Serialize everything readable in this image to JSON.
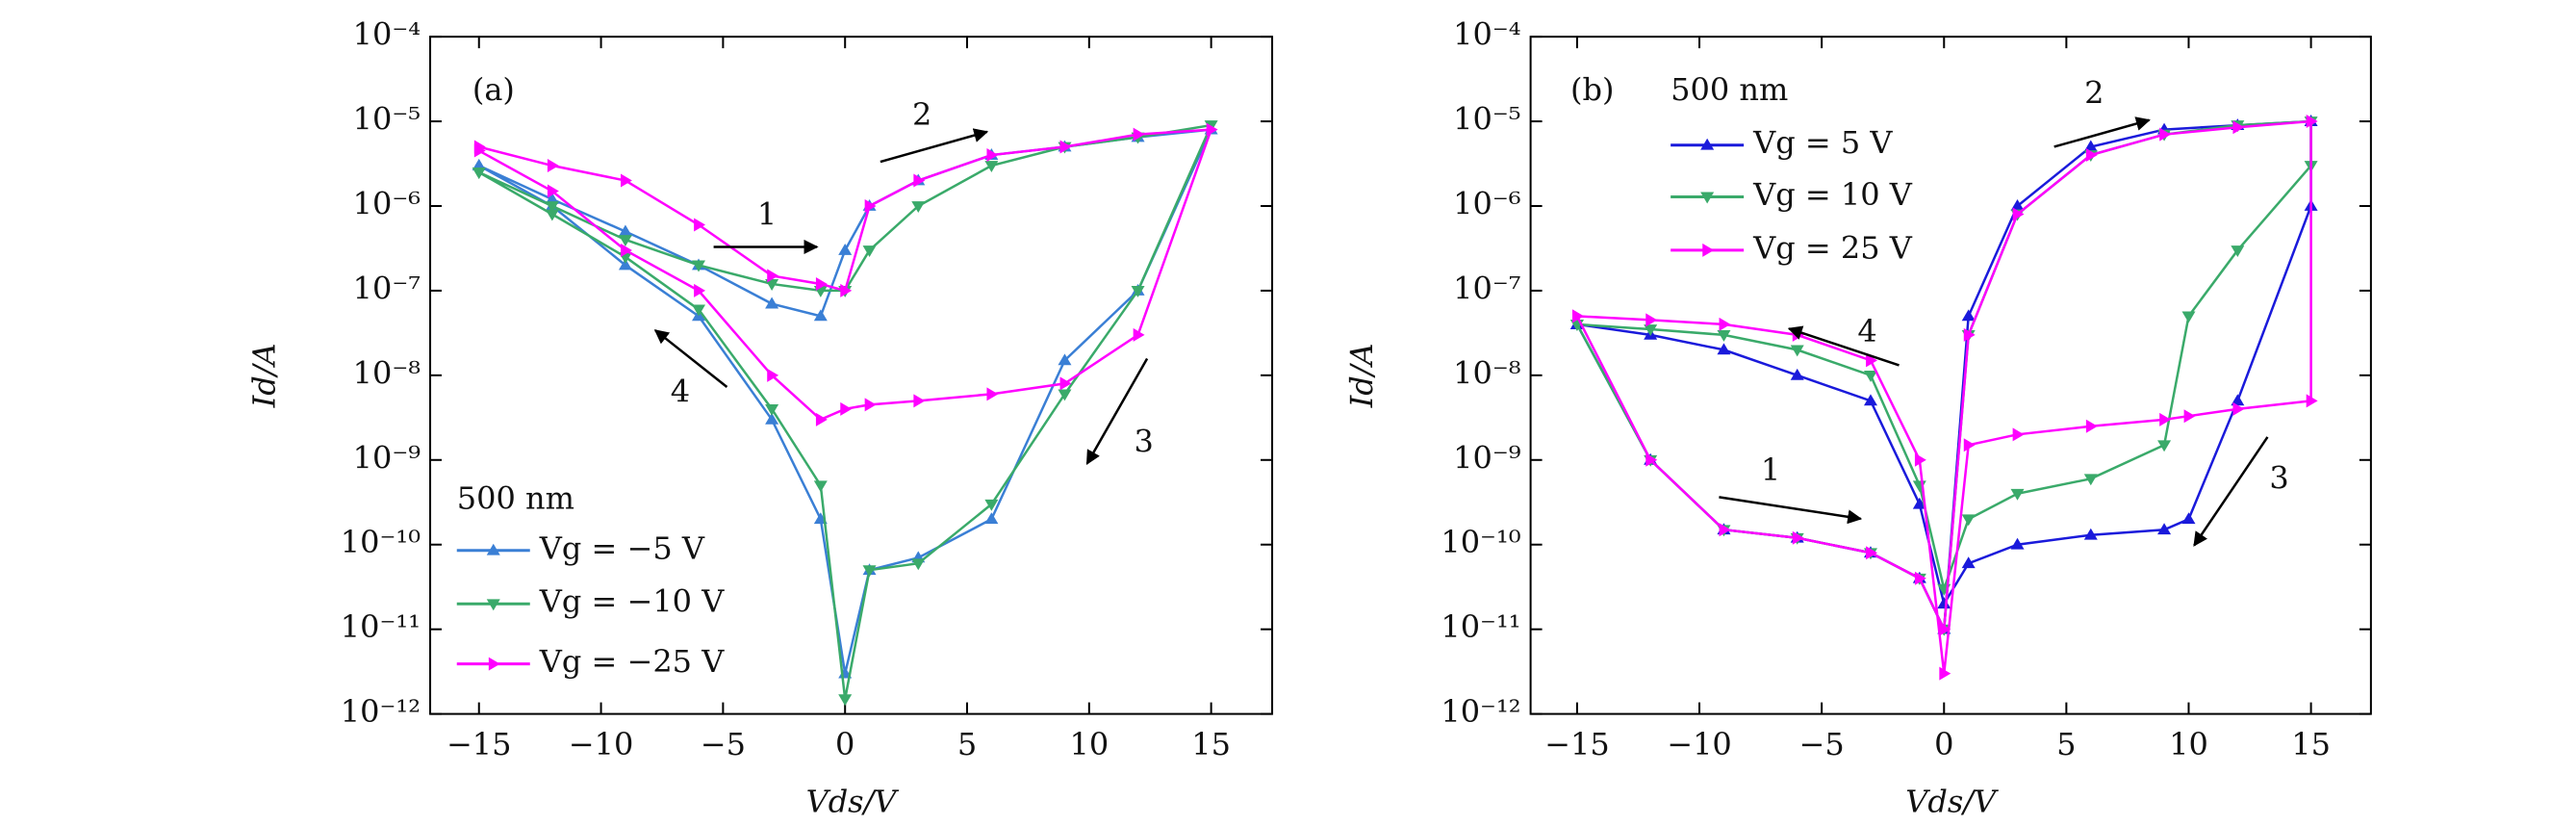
{
  "chart_data": [
    {
      "type": "line",
      "panel_label": "(a)",
      "legend_title": "500 nm",
      "legend": "lower left",
      "xlabel": "Vds/V",
      "ylabel": "Id/A",
      "log_y": true,
      "annotations": [
        "1",
        "2",
        "3",
        "4"
      ],
      "xlim": [
        -17,
        17.5
      ],
      "xticks": [
        {
          "value": -15,
          "label": "−15"
        },
        {
          "value": -10,
          "label": "−10"
        },
        {
          "value": -5,
          "label": "−5"
        },
        0,
        5,
        10,
        15
      ],
      "ylim": [
        1e-12,
        0.0001
      ],
      "yticks": [
        {
          "value": 1e-12,
          "label": "10⁻¹²"
        },
        {
          "value": 1e-11,
          "label": "10⁻¹¹"
        },
        {
          "value": 1e-10,
          "label": "10⁻¹⁰"
        },
        {
          "value": 1e-09,
          "label": "10⁻⁹"
        },
        {
          "value": 1e-08,
          "label": "10⁻⁸"
        },
        {
          "value": 1e-07,
          "label": "10⁻⁷"
        },
        {
          "value": 1e-06,
          "label": "10⁻⁶"
        },
        {
          "value": 1e-05,
          "label": "10⁻⁵"
        },
        {
          "value": 0.0001,
          "label": "10⁻⁴"
        }
      ],
      "x": [
        -15,
        -12,
        -9,
        -6,
        -3,
        -1,
        0,
        1,
        3,
        6,
        9,
        12,
        15,
        12,
        9,
        6,
        3,
        1,
        0,
        -1,
        -3,
        -6,
        -9,
        -12,
        -15
      ],
      "series": [
        {
          "name": "Vg = −5 V",
          "color": "#3a7fd5",
          "marker": "triangle-up",
          "values": [
            3e-06,
            1.2e-06,
            5e-07,
            2e-07,
            7e-08,
            5e-08,
            3e-07,
            1e-06,
            2e-06,
            4e-06,
            5e-06,
            6.5e-06,
            8e-06,
            1e-07,
            1.5e-08,
            2e-10,
            7e-11,
            5e-11,
            3e-12,
            2e-10,
            3e-09,
            5e-08,
            2e-07,
            1e-06,
            3e-06
          ]
        },
        {
          "name": "Vg = −10 V",
          "color": "#3aaa6a",
          "marker": "triangle-down",
          "values": [
            2.5e-06,
            1e-06,
            4e-07,
            2e-07,
            1.2e-07,
            1e-07,
            1e-07,
            3e-07,
            1e-06,
            3e-06,
            5e-06,
            6.5e-06,
            9e-06,
            1e-07,
            6e-09,
            3e-10,
            6e-11,
            5e-11,
            1.5e-12,
            5e-10,
            4e-09,
            6e-08,
            2.5e-07,
            8e-07,
            2.5e-06
          ]
        },
        {
          "name": "Vg = −25 V",
          "color": "#ff00ff",
          "marker": "triangle-right",
          "values": [
            5e-06,
            3e-06,
            2e-06,
            6e-07,
            1.5e-07,
            1.2e-07,
            1e-07,
            1e-06,
            2e-06,
            4e-06,
            5e-06,
            7e-06,
            8e-06,
            3e-08,
            8e-09,
            6e-09,
            5e-09,
            4.5e-09,
            4e-09,
            3e-09,
            1e-08,
            1e-07,
            3e-07,
            1.5e-06,
            4.5e-06
          ]
        }
      ]
    },
    {
      "type": "line",
      "panel_label": "(b)",
      "legend_title": "500 nm",
      "legend": "upper left",
      "xlabel": "Vds/V",
      "ylabel": "Id/A",
      "log_y": true,
      "annotations": [
        "1",
        "2",
        "3",
        "4"
      ],
      "xlim": [
        -16.9,
        17.45
      ],
      "xticks": [
        {
          "value": -15,
          "label": "−15"
        },
        {
          "value": -10,
          "label": "−10"
        },
        {
          "value": -5,
          "label": "−5"
        },
        0,
        5,
        10,
        15
      ],
      "ylim": [
        1e-12,
        0.0001
      ],
      "yticks": [
        {
          "value": 1e-12,
          "label": "10⁻¹²"
        },
        {
          "value": 1e-11,
          "label": "10⁻¹¹"
        },
        {
          "value": 1e-10,
          "label": "10⁻¹⁰"
        },
        {
          "value": 1e-09,
          "label": "10⁻⁹"
        },
        {
          "value": 1e-08,
          "label": "10⁻⁸"
        },
        {
          "value": 1e-07,
          "label": "10⁻⁷"
        },
        {
          "value": 1e-06,
          "label": "10⁻⁶"
        },
        {
          "value": 1e-05,
          "label": "10⁻⁵"
        },
        {
          "value": 0.0001,
          "label": "10⁻⁴"
        }
      ],
      "x": [
        -15,
        -12,
        -9,
        -6,
        -3,
        -1,
        0,
        1,
        3,
        6,
        9,
        12,
        15,
        15,
        12,
        10,
        9,
        6,
        3,
        1,
        0,
        -1,
        -3,
        -6,
        -9,
        -12,
        -15
      ],
      "series": [
        {
          "name": "Vg = 5 V",
          "color": "#1a1adb",
          "marker": "triangle-up",
          "values": [
            4e-08,
            1e-09,
            1.5e-10,
            1.2e-10,
            8e-11,
            4e-11,
            1e-11,
            5e-08,
            1e-06,
            5e-06,
            8e-06,
            9e-06,
            1e-05,
            1e-06,
            5e-09,
            2e-10,
            1.5e-10,
            1.3e-10,
            1e-10,
            6e-11,
            2e-11,
            3e-10,
            5e-09,
            1e-08,
            2e-08,
            3e-08,
            4e-08
          ]
        },
        {
          "name": "Vg = 10 V",
          "color": "#3aaa6a",
          "marker": "triangle-down",
          "values": [
            4e-08,
            1e-09,
            1.5e-10,
            1.2e-10,
            8e-11,
            4e-11,
            1e-11,
            3e-08,
            8e-07,
            4e-06,
            7e-06,
            9e-06,
            1e-05,
            3e-06,
            3e-07,
            5e-08,
            1.5e-09,
            6e-10,
            4e-10,
            2e-10,
            3e-11,
            5e-10,
            1e-08,
            2e-08,
            3e-08,
            3.5e-08,
            4e-08
          ]
        },
        {
          "name": "Vg = 25 V",
          "color": "#ff00ff",
          "marker": "triangle-right",
          "values": [
            5e-08,
            1e-09,
            1.5e-10,
            1.2e-10,
            8e-11,
            4e-11,
            1e-11,
            3e-08,
            8e-07,
            4e-06,
            7e-06,
            8.5e-06,
            1e-05,
            5e-09,
            4e-09,
            3.3e-09,
            3e-09,
            2.5e-09,
            2e-09,
            1.5e-09,
            3e-12,
            1e-09,
            1.5e-08,
            3e-08,
            4e-08,
            4.5e-08,
            5e-08
          ]
        }
      ]
    }
  ]
}
